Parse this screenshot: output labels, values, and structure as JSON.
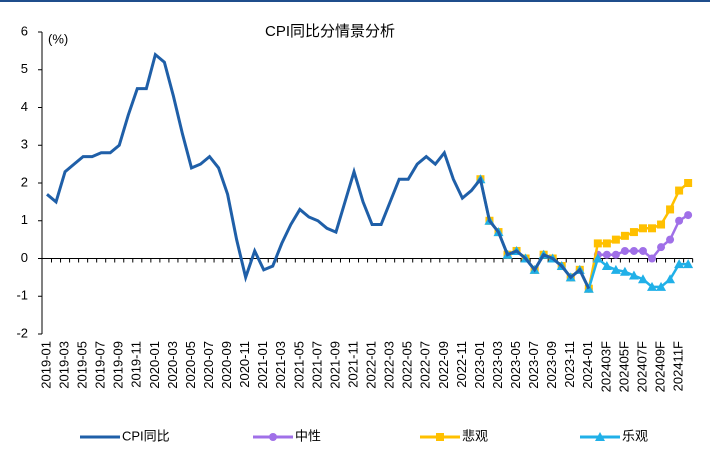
{
  "chart_data": {
    "type": "line",
    "title": "CPI同比分情景分析",
    "y_unit_label": "(%)",
    "categories": [
      "2019-01",
      null,
      "2019-03",
      null,
      "2019-05",
      null,
      "2019-07",
      null,
      "2019-09",
      null,
      "2019-11",
      null,
      "2020-01",
      null,
      "2020-03",
      null,
      "2020-05",
      null,
      "2020-07",
      null,
      "2020-09",
      null,
      "2020-11",
      null,
      "2021-01",
      null,
      "2021-03",
      null,
      "2021-05",
      null,
      "2021-07",
      null,
      "2021-09",
      null,
      "2021-11",
      null,
      "2022-01",
      null,
      "2022-03",
      null,
      "2022-05",
      null,
      "2022-07",
      null,
      "2022-09",
      null,
      "2022-11",
      null,
      "2023-01",
      null,
      "2023-03",
      null,
      "2023-05",
      null,
      "2023-07",
      null,
      "2023-09",
      null,
      "2023-11",
      null,
      "2024-01",
      null,
      "202403F",
      null,
      "202405F",
      null,
      "202407F",
      null,
      "202409F",
      null,
      "202411F",
      null
    ],
    "series": [
      {
        "name": "CPI同比",
        "color": "#1f5fa8",
        "marker": "none",
        "values": [
          1.7,
          1.5,
          2.3,
          2.5,
          2.7,
          2.7,
          2.8,
          2.8,
          3.0,
          3.8,
          4.5,
          4.5,
          5.4,
          5.2,
          4.3,
          3.3,
          2.4,
          2.5,
          2.7,
          2.4,
          1.7,
          0.5,
          -0.5,
          0.2,
          -0.3,
          -0.2,
          0.4,
          0.9,
          1.3,
          1.1,
          1.0,
          0.8,
          0.7,
          1.5,
          2.3,
          1.5,
          0.9,
          0.9,
          1.5,
          2.1,
          2.1,
          2.5,
          2.7,
          2.5,
          2.8,
          2.1,
          1.6,
          1.8,
          2.1,
          1.0,
          0.7,
          0.1,
          0.2,
          0.0,
          -0.3,
          0.1,
          0.0,
          -0.2,
          -0.5,
          -0.3,
          -0.8,
          null,
          null,
          null,
          null,
          null,
          null,
          null,
          null,
          null,
          null,
          null
        ]
      },
      {
        "name": "中性",
        "color": "#a070e8",
        "marker": "circle",
        "values": [
          null,
          null,
          null,
          null,
          null,
          null,
          null,
          null,
          null,
          null,
          null,
          null,
          null,
          null,
          null,
          null,
          null,
          null,
          null,
          null,
          null,
          null,
          null,
          null,
          null,
          null,
          null,
          null,
          null,
          null,
          null,
          null,
          null,
          null,
          null,
          null,
          null,
          null,
          null,
          null,
          null,
          null,
          null,
          null,
          null,
          null,
          null,
          null,
          2.1,
          1.0,
          0.7,
          0.1,
          0.2,
          0.0,
          -0.3,
          0.1,
          0.0,
          -0.2,
          -0.5,
          -0.3,
          -0.8,
          0.1,
          0.1,
          0.1,
          0.2,
          0.2,
          0.2,
          0.0,
          0.3,
          0.5,
          1.0,
          1.15
        ]
      },
      {
        "name": "悲观",
        "color": "#ffc000",
        "marker": "square",
        "values": [
          null,
          null,
          null,
          null,
          null,
          null,
          null,
          null,
          null,
          null,
          null,
          null,
          null,
          null,
          null,
          null,
          null,
          null,
          null,
          null,
          null,
          null,
          null,
          null,
          null,
          null,
          null,
          null,
          null,
          null,
          null,
          null,
          null,
          null,
          null,
          null,
          null,
          null,
          null,
          null,
          null,
          null,
          null,
          null,
          null,
          null,
          null,
          null,
          2.1,
          1.0,
          0.7,
          0.1,
          0.2,
          0.0,
          -0.3,
          0.1,
          0.0,
          -0.2,
          -0.5,
          -0.3,
          -0.8,
          0.4,
          0.4,
          0.5,
          0.6,
          0.7,
          0.8,
          0.8,
          0.9,
          1.3,
          1.8,
          2.0
        ]
      },
      {
        "name": "乐观",
        "color": "#20b0e8",
        "marker": "triangle",
        "values": [
          null,
          null,
          null,
          null,
          null,
          null,
          null,
          null,
          null,
          null,
          null,
          null,
          null,
          null,
          null,
          null,
          null,
          null,
          null,
          null,
          null,
          null,
          null,
          null,
          null,
          null,
          null,
          null,
          null,
          null,
          null,
          null,
          null,
          null,
          null,
          null,
          null,
          null,
          null,
          null,
          null,
          null,
          null,
          null,
          null,
          null,
          null,
          null,
          2.1,
          1.0,
          0.7,
          0.1,
          0.2,
          0.0,
          -0.3,
          0.1,
          0.0,
          -0.2,
          -0.5,
          -0.3,
          -0.8,
          0.0,
          -0.2,
          -0.3,
          -0.35,
          -0.45,
          -0.55,
          -0.75,
          -0.75,
          -0.55,
          -0.15,
          -0.15
        ]
      }
    ],
    "ylim": [
      -2,
      6
    ],
    "yticks": [
      -2,
      -1,
      0,
      1,
      2,
      3,
      4,
      5,
      6
    ],
    "grid": false,
    "legend": "bottom"
  }
}
